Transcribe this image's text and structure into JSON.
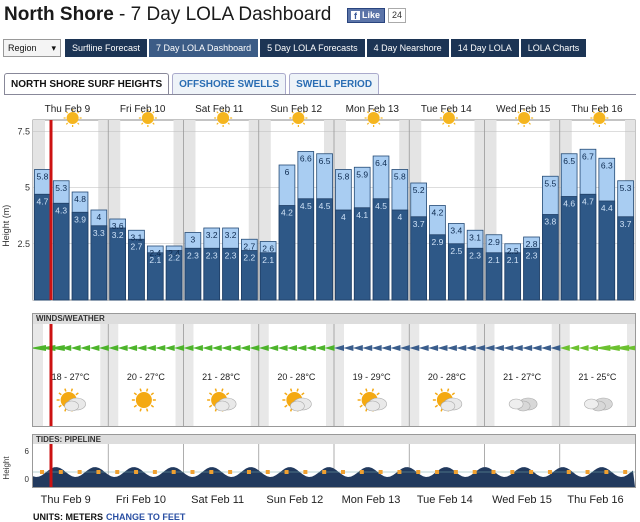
{
  "header": {
    "title_bold": "North Shore",
    "title_rest": " - 7 Day LOLA Dashboard"
  },
  "facebook": {
    "like_label": "Like",
    "count": "24"
  },
  "nav": {
    "region_label": "Region",
    "buttons": [
      {
        "label": "Surfline Forecast",
        "active": false
      },
      {
        "label": "7 Day LOLA Dashboard",
        "active": true
      },
      {
        "label": "5 Day LOLA Forecasts",
        "active": false
      },
      {
        "label": "4 Day Nearshore",
        "active": false
      },
      {
        "label": "14 Day LOLA",
        "active": false
      },
      {
        "label": "LOLA Charts",
        "active": false
      }
    ]
  },
  "tabs": [
    {
      "label": "NORTH SHORE SURF HEIGHTS",
      "active": true
    },
    {
      "label": "OFFSHORE SWELLS",
      "active": false
    },
    {
      "label": "SWELL PERIOD",
      "active": false
    }
  ],
  "days": [
    "Thu Feb 9",
    "Fri Feb 10",
    "Sat Feb 11",
    "Sun Feb 12",
    "Mon Feb 13",
    "Tue Feb 14",
    "Wed Feb 15",
    "Thu Feb 16"
  ],
  "chart_data": {
    "type": "bar",
    "ylabel": "Height (m)",
    "yticks": [
      "7.5",
      "5",
      "2.5"
    ],
    "ylim": [
      0,
      8
    ],
    "series": [
      {
        "values": [
          4.7,
          4.3,
          3.9,
          3.3,
          3.2,
          2.7,
          2.1,
          2.2,
          2.3,
          2.3,
          2.3,
          2.2,
          2.1,
          4.2,
          4.5,
          4.5,
          4.0,
          4.1,
          4.5,
          4.0,
          3.7,
          2.9,
          2.5,
          2.3,
          2.1,
          2.1,
          2.3,
          3.8,
          4.6,
          4.7,
          4.4,
          3.7
        ]
      },
      {
        "values": [
          5.8,
          5.3,
          4.8,
          4.0,
          3.6,
          3.1,
          2.4,
          2.4,
          3.0,
          3.2,
          3.2,
          2.7,
          2.6,
          6.0,
          6.6,
          6.5,
          5.8,
          5.9,
          6.4,
          5.8,
          5.2,
          4.2,
          3.4,
          3.1,
          2.9,
          2.5,
          2.8,
          5.5,
          6.5,
          6.7,
          6.3,
          5.3
        ]
      }
    ],
    "labels_top": [
      "5.8",
      "5.3",
      "4.8",
      "4",
      "3.6",
      "3.1",
      "2.4",
      "2.4",
      "3",
      "3.2",
      "3.2",
      "2.7",
      "2.6",
      "6",
      "6.6",
      "6.5",
      "5.8",
      "5.9",
      "6.4",
      "5.8",
      "5.2",
      "4.2",
      "3.4",
      "3.1",
      "2.9",
      "2.5",
      "2.8",
      "5.5",
      "6.5",
      "6.7",
      "6.3",
      "5.3"
    ],
    "labels_bottom": [
      "4.7",
      "4.3",
      "3.9",
      "3.3",
      "3.2",
      "2.7",
      "2.1",
      "2.2",
      "2.3",
      "2.3",
      "2.3",
      "2.2",
      "2.1",
      "4.2",
      "4.5",
      "4.5",
      "4",
      "4.1",
      "4.5",
      "4",
      "3.7",
      "2.9",
      "2.5",
      "2.3",
      "2.1",
      "2.1",
      "2.3",
      "3.8",
      "4.6",
      "4.7",
      "4.4",
      "3.7"
    ]
  },
  "winds": {
    "header": "WINDS/WEATHER"
  },
  "temps": [
    "18 - 27°C",
    "20 - 27°C",
    "21 - 28°C",
    "20 - 28°C",
    "19 - 29°C",
    "20 - 28°C",
    "21 - 27°C",
    "21 - 25°C"
  ],
  "weather_icons": [
    "partly-cloudy-icon",
    "sun-icon",
    "partly-cloudy-icon",
    "partly-cloudy-icon",
    "partly-cloudy-icon",
    "partly-cloudy-icon",
    "cloudy-icon",
    "cloudy-icon"
  ],
  "tides": {
    "header": "TIDES: PIPELINE",
    "ylabel": "Height",
    "yticks": [
      "6",
      "0"
    ]
  },
  "units": {
    "label": "UNITS: METERS",
    "link": "CHANGE TO FEET"
  },
  "colors": {
    "bar_dark": "#2e5887",
    "bar_light": "#a9cdf2",
    "nav_bg": "#1c3454",
    "now_line": "#cc1111"
  }
}
